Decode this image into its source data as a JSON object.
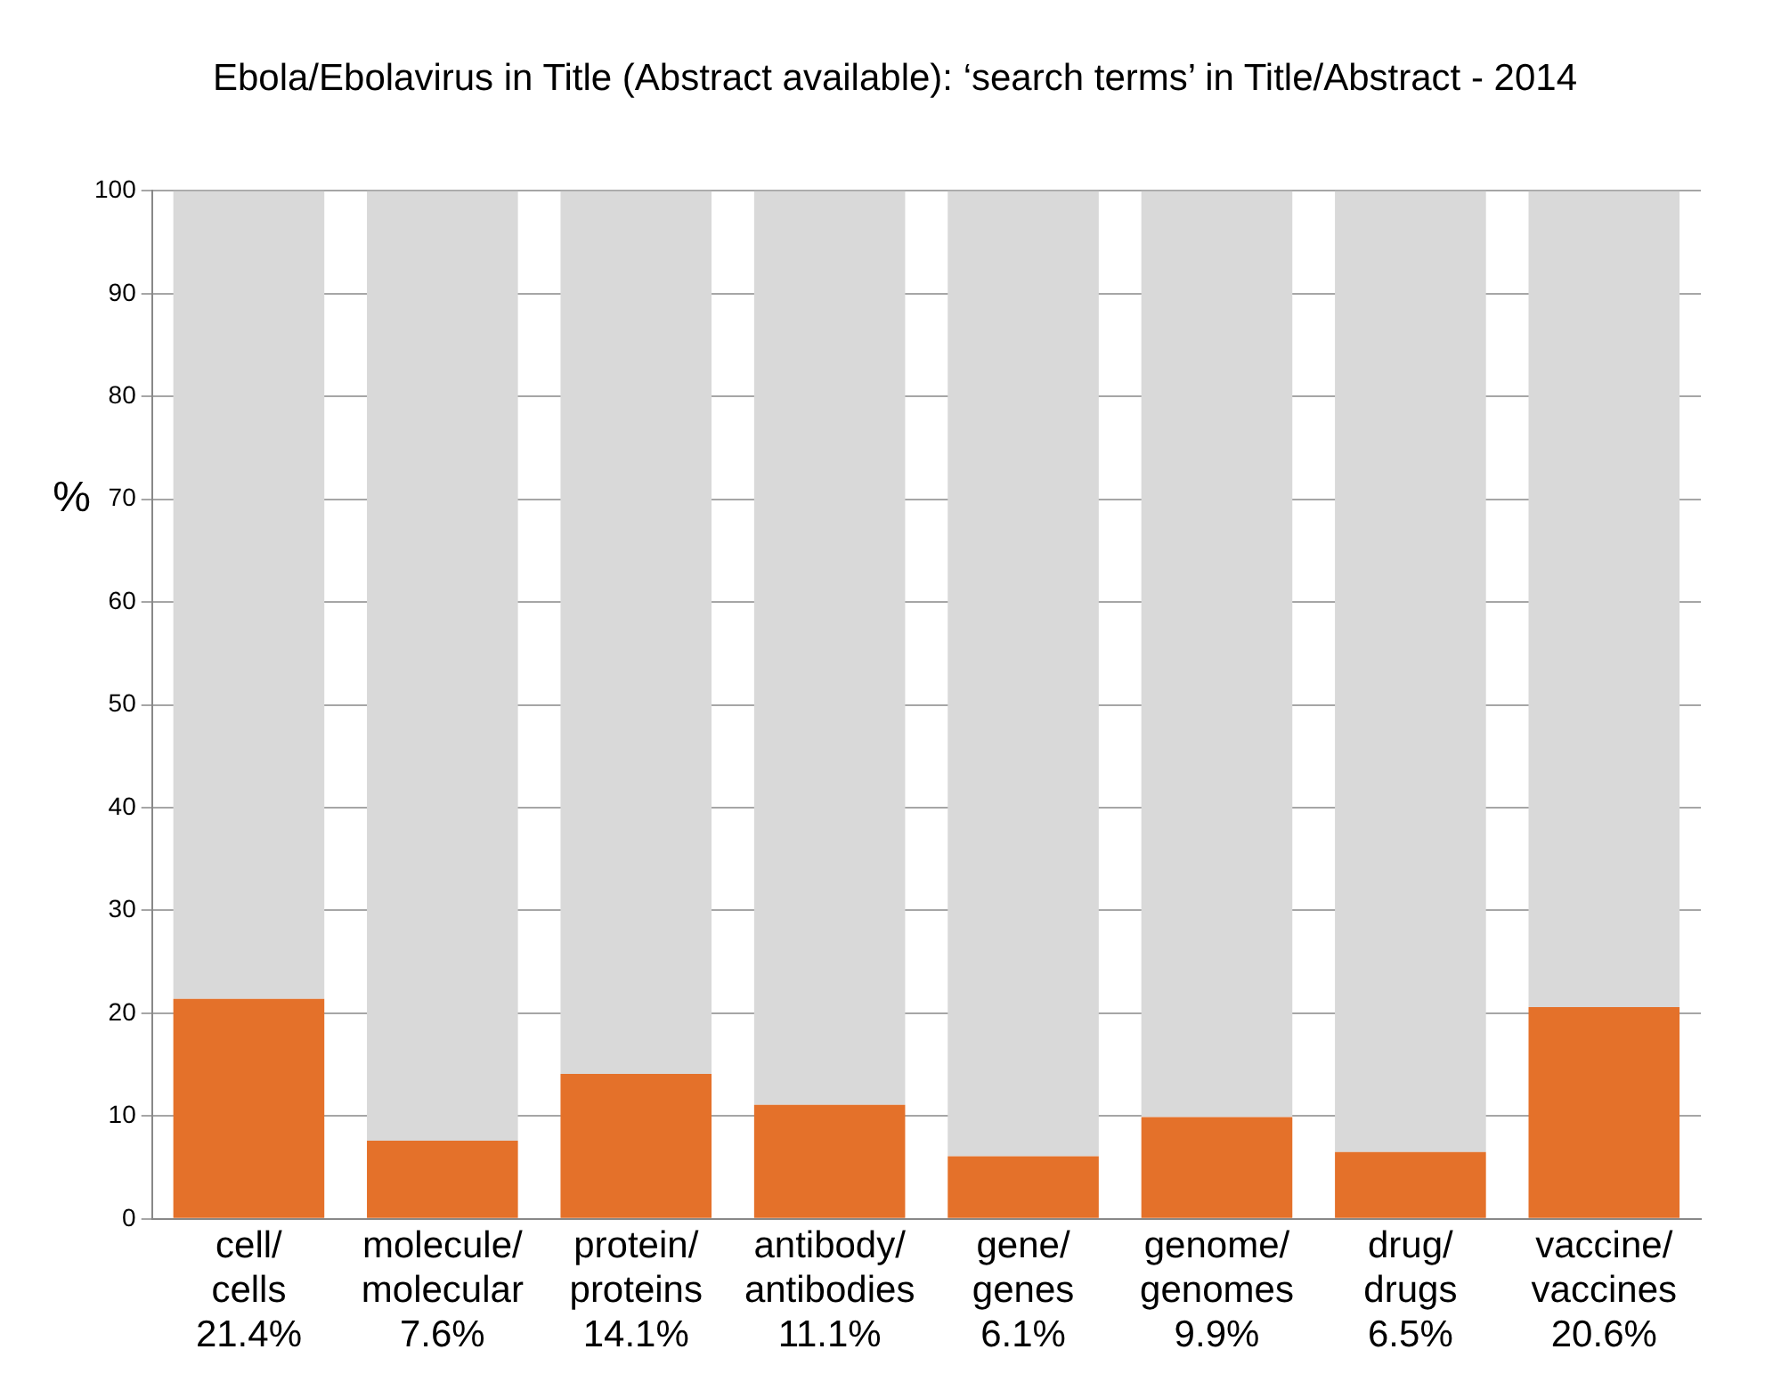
{
  "chart_data": {
    "type": "bar",
    "stacked": true,
    "title": "Ebola/Ebolavirus in Title (Abstract available): ‘search terms’ in Title/Abstract - 2014",
    "ylabel": "%",
    "categories": [
      "cell/\ncells\n21.4%",
      "molecule/\nmolecular\n7.6%",
      "protein/\nproteins\n14.1%",
      "antibody/\nantibodies\n11.1%",
      "gene/\ngenes\n6.1%",
      "genome/\ngenomes\n9.9%",
      "drug/\ndrugs\n6.5%",
      "vaccine/\nvaccines\n20.6%"
    ],
    "series": [
      {
        "color": "#e4712a",
        "values": [
          21.4,
          7.6,
          14.1,
          11.1,
          6.1,
          9.9,
          6.5,
          20.6
        ]
      },
      {
        "color": "#d9d9d9",
        "values": [
          78.6,
          92.4,
          85.9,
          88.9,
          93.9,
          90.1,
          93.5,
          79.4
        ]
      }
    ],
    "ylim": [
      0,
      100
    ],
    "yticks": [
      0,
      10,
      20,
      30,
      40,
      50,
      60,
      70,
      80,
      90,
      100
    ],
    "grid": "y",
    "legend": false
  }
}
